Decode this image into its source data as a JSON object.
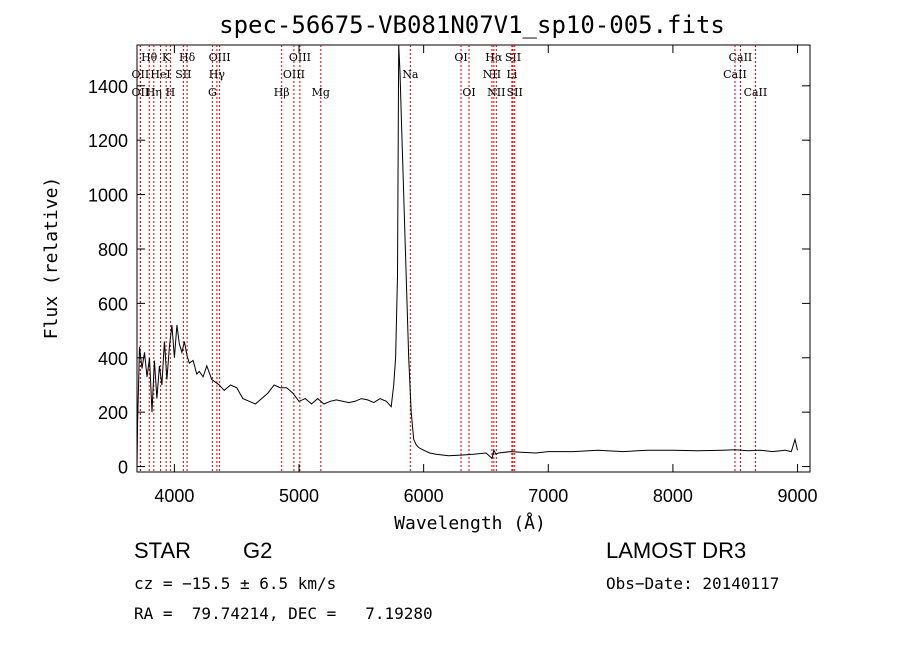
{
  "chart_data": {
    "type": "line",
    "title": "spec-56675-VB081N07V1_sp10-005.fits",
    "xlabel": "Wavelength (Å)",
    "ylabel": "Flux (relative)",
    "xlim": [
      3700,
      9100
    ],
    "ylim": [
      -20,
      1550
    ],
    "xticks": [
      4000,
      5000,
      6000,
      7000,
      8000,
      9000
    ],
    "yticks": [
      0,
      200,
      400,
      600,
      800,
      1000,
      1200,
      1400
    ],
    "grid": false,
    "line_color": "#000000",
    "marker_color": "#cc0000",
    "series": [
      {
        "x": [
          3700,
          3705,
          3720,
          3740,
          3760,
          3780,
          3800,
          3820,
          3840,
          3860,
          3880,
          3900,
          3920,
          3940,
          3960,
          3980,
          4000,
          4020,
          4040,
          4060,
          4080,
          4100,
          4120,
          4150,
          4180,
          4200,
          4230,
          4260,
          4300,
          4330,
          4360,
          4400,
          4450,
          4500,
          4550,
          4600,
          4650,
          4700,
          4750,
          4800,
          4850,
          4900,
          4950,
          5000,
          5050,
          5100,
          5150,
          5200,
          5250,
          5300,
          5350,
          5400,
          5450,
          5500,
          5550,
          5600,
          5650,
          5700,
          5740,
          5760,
          5775,
          5790,
          5800,
          5810,
          5820,
          5840,
          5860,
          5880,
          5900,
          5920,
          5940,
          5960,
          5980,
          6000,
          6050,
          6100,
          6200,
          6300,
          6400,
          6500,
          6550,
          6563,
          6580,
          6600,
          6700,
          6800,
          6900,
          7000,
          7200,
          7400,
          7600,
          7800,
          8000,
          8200,
          8400,
          8500,
          8600,
          8700,
          8800,
          8900,
          8950,
          8980,
          9000
        ],
        "y": [
          -10,
          160,
          440,
          360,
          420,
          330,
          400,
          200,
          390,
          250,
          370,
          300,
          460,
          320,
          440,
          520,
          400,
          520,
          450,
          420,
          460,
          410,
          380,
          390,
          340,
          350,
          330,
          370,
          320,
          310,
          300,
          280,
          300,
          290,
          250,
          240,
          230,
          250,
          270,
          300,
          290,
          290,
          270,
          240,
          250,
          230,
          250,
          230,
          240,
          245,
          240,
          235,
          240,
          250,
          245,
          235,
          250,
          240,
          220,
          300,
          400,
          700,
          1550,
          1450,
          1300,
          1000,
          700,
          400,
          200,
          100,
          80,
          70,
          65,
          60,
          50,
          45,
          40,
          42,
          45,
          50,
          30,
          60,
          45,
          50,
          55,
          52,
          50,
          55,
          55,
          60,
          55,
          60,
          60,
          58,
          60,
          62,
          58,
          60,
          55,
          60,
          55,
          100,
          60
        ]
      }
    ],
    "line_markers": [
      {
        "label": "Hθ",
        "x": 3798,
        "row": 1
      },
      {
        "label": "OII",
        "x": 3727,
        "row": 2
      },
      {
        "label": "OII",
        "x": 3727,
        "row": 3
      },
      {
        "label": "K",
        "x": 3934,
        "row": 1
      },
      {
        "label": "HeI",
        "x": 3889,
        "row": 2
      },
      {
        "label": "Hη",
        "x": 3835,
        "row": 3
      },
      {
        "label": "H",
        "x": 3968,
        "row": 3
      },
      {
        "label": "Hδ",
        "x": 4102,
        "row": 1
      },
      {
        "label": "SII",
        "x": 4072,
        "row": 2
      },
      {
        "label": "OIII",
        "x": 4363,
        "row": 1
      },
      {
        "label": "Hγ",
        "x": 4341,
        "row": 2
      },
      {
        "label": "G",
        "x": 4305,
        "row": 3
      },
      {
        "label": "OIII",
        "x": 5007,
        "row": 1
      },
      {
        "label": "OIII",
        "x": 4959,
        "row": 2
      },
      {
        "label": "Hβ",
        "x": 4861,
        "row": 3
      },
      {
        "label": "Mg",
        "x": 5175,
        "row": 3
      },
      {
        "label": "Na",
        "x": 5893,
        "row": 2
      },
      {
        "label": "OI",
        "x": 6300,
        "row": 1
      },
      {
        "label": "OI",
        "x": 6364,
        "row": 3
      },
      {
        "label": "Hα",
        "x": 6563,
        "row": 1
      },
      {
        "label": "NII",
        "x": 6548,
        "row": 2
      },
      {
        "label": "NII",
        "x": 6583,
        "row": 3
      },
      {
        "label": "SII",
        "x": 6717,
        "row": 1
      },
      {
        "label": "Li",
        "x": 6708,
        "row": 2
      },
      {
        "label": "SII",
        "x": 6731,
        "row": 3
      },
      {
        "label": "CaII",
        "x": 8542,
        "row": 1
      },
      {
        "label": "CaII",
        "x": 8498,
        "row": 2
      },
      {
        "label": "CaII",
        "x": 8662,
        "row": 3
      }
    ]
  },
  "info": {
    "object_class": "STAR",
    "subclass": "G2",
    "survey": "LAMOST DR3",
    "redshift": "cz = −15.5 ± 6.5 km/s",
    "obs_date": "Obs−Date: 20140117",
    "coords": "RA =  79.74214, DEC =   7.19280"
  }
}
